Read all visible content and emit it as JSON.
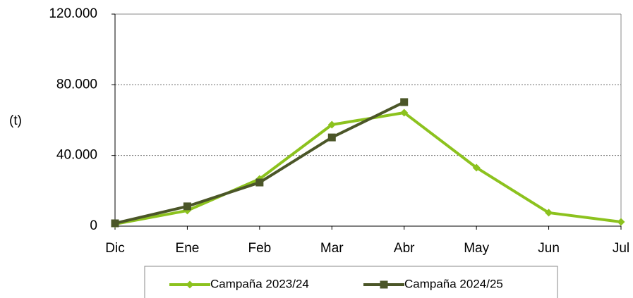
{
  "chart_data": {
    "type": "line",
    "y_label": "(t)",
    "categories": [
      "Dic",
      "Ene",
      "Feb",
      "Mar",
      "Abr",
      "May",
      "Jun",
      "Jul"
    ],
    "series": [
      {
        "name": "Campaña 2023/24",
        "color": "#8cc21e",
        "marker": "diamond",
        "values": [
          1200,
          8800,
          26700,
          57400,
          64200,
          33100,
          7600,
          2400
        ]
      },
      {
        "name": "Campaña 2024/25",
        "color": "#4b5628",
        "marker": "square",
        "values": [
          1600,
          11200,
          24700,
          50200,
          70200,
          null,
          null,
          null
        ]
      }
    ],
    "ylim": [
      0,
      120000
    ],
    "yticks": [
      0,
      {
        "value": 40000,
        "label": "40.000"
      },
      {
        "value": 80000,
        "label": "80.000"
      },
      {
        "value": 120000,
        "label": "120.000"
      }
    ],
    "grid": true
  }
}
